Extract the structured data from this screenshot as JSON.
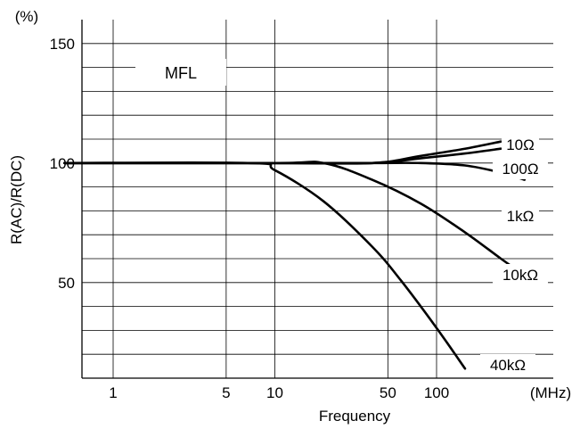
{
  "chart_data": {
    "type": "line",
    "title": "MFL",
    "xlabel": "Frequency",
    "ylabel": "R(AC)/R(DC)",
    "x_unit": "(MHz)",
    "y_unit": "(%)",
    "x_scale": "log",
    "xlim": [
      0.5,
      400
    ],
    "ylim": [
      10,
      160
    ],
    "x_ticks": [
      1,
      5,
      10,
      50,
      100
    ],
    "y_ticks": [
      50,
      100,
      150
    ],
    "grid": true,
    "series": [
      {
        "name": "10Ω",
        "x": [
          0.5,
          10,
          40,
          80,
          150,
          250
        ],
        "y": [
          100,
          100,
          100,
          103,
          106,
          109
        ]
      },
      {
        "name": "100Ω",
        "x": [
          0.5,
          10,
          40,
          80,
          150,
          250
        ],
        "y": [
          100,
          100,
          100,
          102,
          104,
          106
        ]
      },
      {
        "name": "1kΩ",
        "x": [
          0.5,
          10,
          40,
          80,
          150,
          250,
          350
        ],
        "y": [
          100,
          100,
          100,
          100,
          99,
          96,
          93
        ]
      },
      {
        "name": "10kΩ",
        "x": [
          0.5,
          10,
          20,
          40,
          80,
          150,
          250,
          350
        ],
        "y": [
          100,
          100,
          100,
          93,
          83,
          71,
          60,
          53
        ]
      },
      {
        "name": "40kΩ",
        "x": [
          0.5,
          7,
          10,
          20,
          40,
          60,
          100,
          150
        ],
        "y": [
          100,
          100,
          97,
          84,
          65,
          51,
          31,
          14
        ]
      }
    ]
  }
}
